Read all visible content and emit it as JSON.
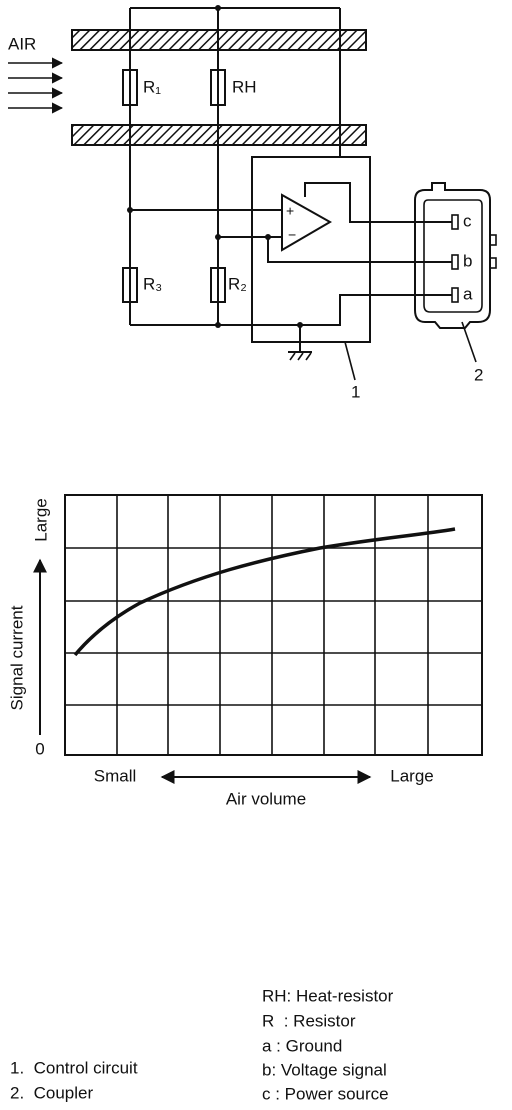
{
  "circuit": {
    "air_label": "AIR",
    "resistors": [
      "R₁",
      "RH",
      "R₃",
      "R₂"
    ],
    "pins": [
      "c",
      "b",
      "a"
    ],
    "callouts": [
      "1",
      "2"
    ]
  },
  "graph": {
    "y_high": "Large",
    "y_axis_label": "Signal current",
    "y_zero": "0",
    "x_low": "Small",
    "x_high": "Large",
    "x_axis_label": "Air volume"
  },
  "legend": {
    "left": [
      "1.  Control circuit",
      "2.  Coupler"
    ],
    "right": [
      "RH: Heat-resistor",
      "R  : Resistor",
      "a : Ground",
      "b: Voltage signal",
      "c : Power source"
    ]
  }
}
